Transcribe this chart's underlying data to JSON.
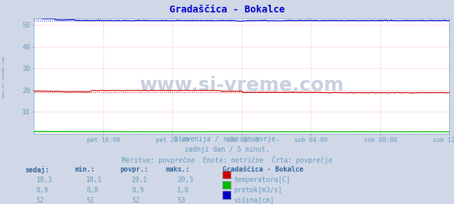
{
  "title": "Gradaščica - Bokalce",
  "title_color": "#0000cc",
  "bg_color": "#d0d8e8",
  "plot_bg_color": "#ffffff",
  "grid_color": "#ffb0b0",
  "text_color": "#6699bb",
  "xlabel_ticks": [
    "pet 16:00",
    "pet 20:00",
    "sob 00:00",
    "sob 04:00",
    "sob 08:00",
    "sob 12:00"
  ],
  "ylim": [
    0,
    53
  ],
  "xlim": [
    0,
    288
  ],
  "yticks": [
    10,
    20,
    30,
    40,
    50
  ],
  "n_points": 289,
  "temp_base": 19.1,
  "temp_color": "#cc0000",
  "pretok_base": 0.9,
  "pretok_color": "#00bb00",
  "visina_base": 52.0,
  "visina_color": "#0000cc",
  "watermark": "www.si-vreme.com",
  "watermark_color": "#c8d0e0",
  "subtitle1": "Slovenija / reke in morje.",
  "subtitle2": "zadnji dan / 5 minut.",
  "subtitle3": "Meritve: povprečne  Enote: metrične  Črta: povprečje",
  "legend_title": "Gradaščica - Bokalce",
  "legend_items": [
    {
      "label": "temperatura[C]",
      "color": "#cc0000"
    },
    {
      "label": "pretok[m3/s]",
      "color": "#00bb00"
    },
    {
      "label": "višina[cm]",
      "color": "#0000cc"
    }
  ],
  "table_headers": [
    "sedaj:",
    "min.:",
    "povpr.:",
    "maks.:"
  ],
  "table_data": [
    [
      "18,3",
      "18,1",
      "19,1",
      "20,3"
    ],
    [
      "0,9",
      "0,8",
      "0,9",
      "1,0"
    ],
    [
      "52",
      "51",
      "52",
      "53"
    ]
  ],
  "header_color": "#336699",
  "label_color_bold": "#336699"
}
